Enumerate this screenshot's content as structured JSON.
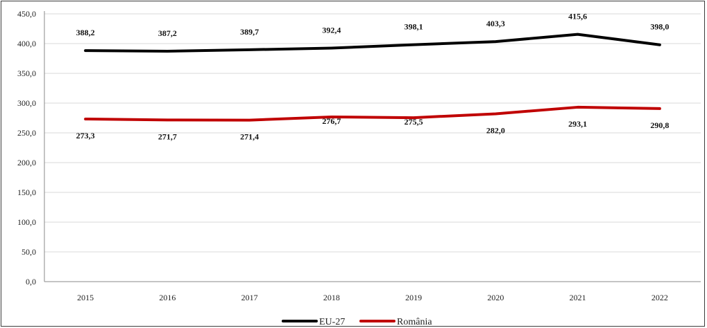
{
  "chart_data": {
    "type": "line",
    "categories": [
      "2015",
      "2016",
      "2017",
      "2018",
      "2019",
      "2020",
      "2021",
      "2022"
    ],
    "ylim": [
      0,
      450
    ],
    "yticks": [
      "0,0",
      "50,0",
      "100,0",
      "150,0",
      "200,0",
      "250,0",
      "300,0",
      "350,0",
      "400,0",
      "450,0"
    ],
    "grid": true,
    "legend_position": "bottom",
    "series": [
      {
        "name": "EU-27",
        "color": "#000000",
        "values": [
          388.2,
          387.2,
          389.7,
          392.4,
          398.1,
          403.3,
          415.6,
          398.0
        ],
        "labels": [
          "388,2",
          "387,2",
          "389,7",
          "392,4",
          "398,1",
          "403,3",
          "415,6",
          "398,0"
        ]
      },
      {
        "name": "România",
        "color": "#c00000",
        "values": [
          273.3,
          271.7,
          271.4,
          276.7,
          275.5,
          282.0,
          293.1,
          290.8
        ],
        "labels": [
          "273,3",
          "271,7",
          "271,4",
          "276,7",
          "275,5",
          "282,0",
          "293,1",
          "290,8"
        ]
      }
    ]
  }
}
